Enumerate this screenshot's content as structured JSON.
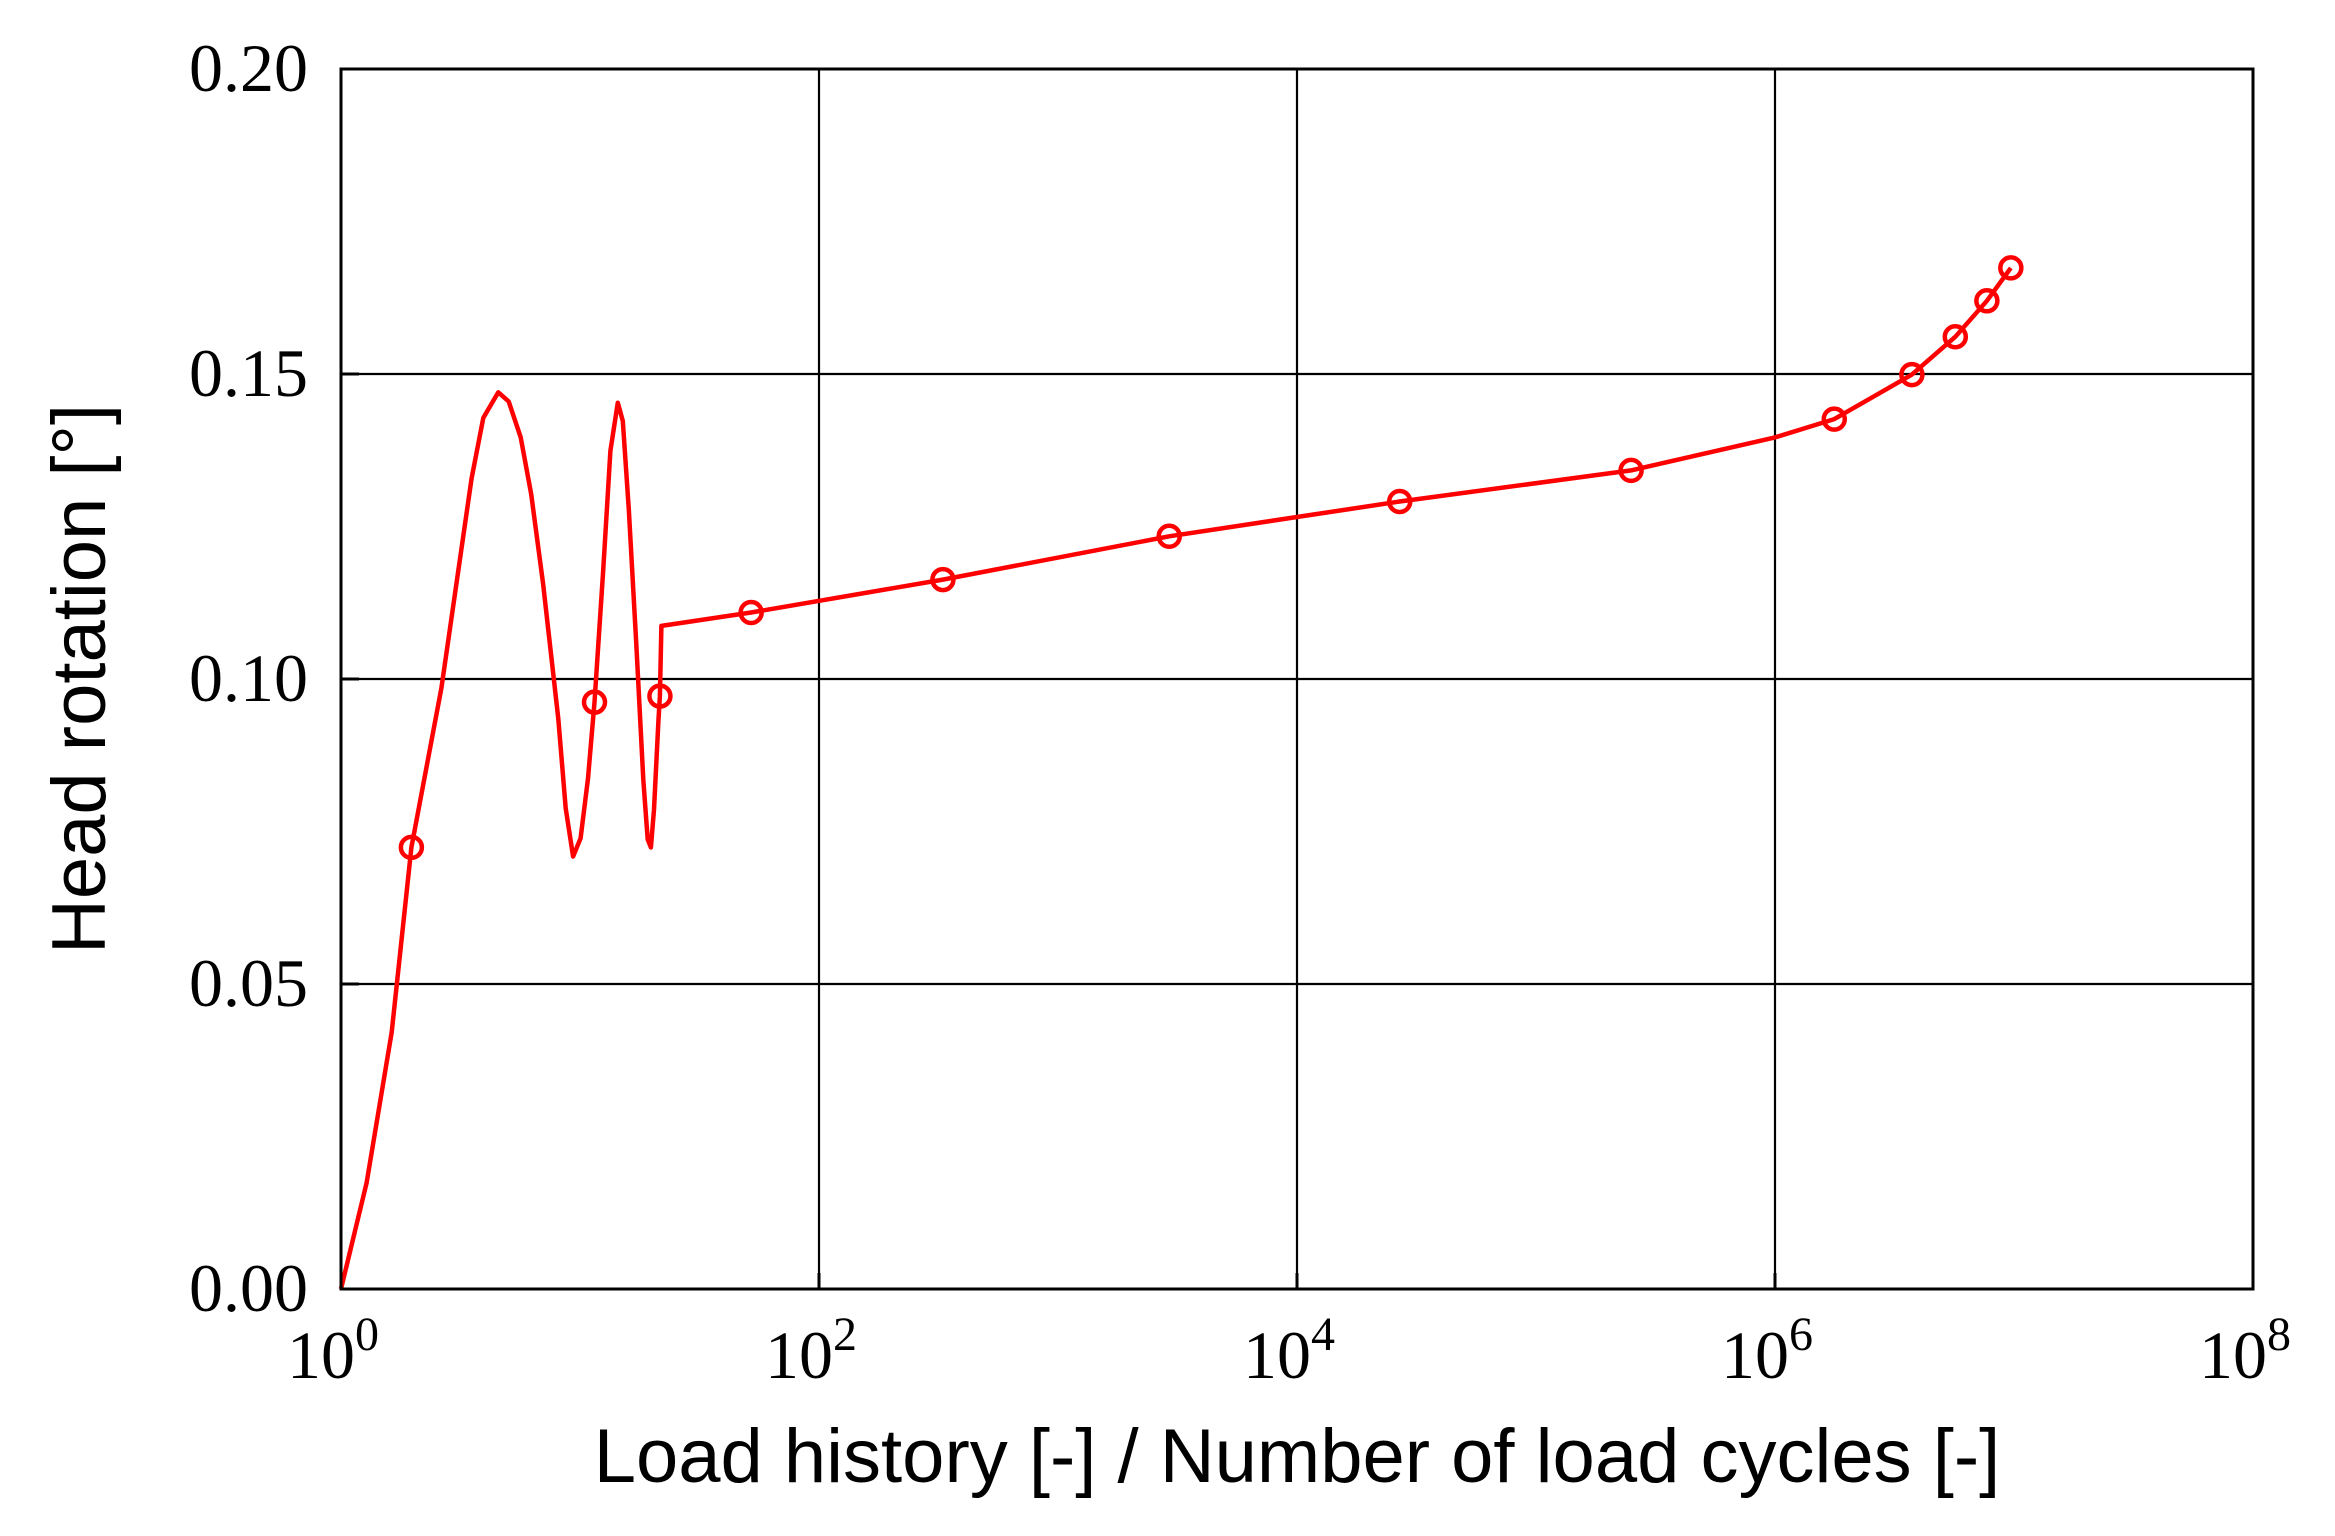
{
  "chart_data": {
    "type": "line",
    "title": "",
    "xlabel": "Load history [-] / Number of load cycles [-]",
    "ylabel": "Head rotation [°]",
    "x_scale": "log",
    "xlim": [
      1,
      100000000
    ],
    "ylim": [
      0,
      0.2
    ],
    "x_ticks": [
      {
        "base": "10",
        "exp": "0",
        "value": 1
      },
      {
        "base": "10",
        "exp": "2",
        "value": 100
      },
      {
        "base": "10",
        "exp": "4",
        "value": 10000
      },
      {
        "base": "10",
        "exp": "6",
        "value": 1000000
      },
      {
        "base": "10",
        "exp": "8",
        "value": 100000000
      }
    ],
    "y_ticks": [
      {
        "label": "0.00",
        "value": 0
      },
      {
        "label": "0.05",
        "value": 0.05
      },
      {
        "label": "0.10",
        "value": 0.1
      },
      {
        "label": "0.15",
        "value": 0.15
      },
      {
        "label": "0.20",
        "value": 0.2
      }
    ],
    "grid": true,
    "color": "#ff0000",
    "series": [
      {
        "line": [
          [
            1,
            0
          ],
          [
            1.28,
            0.0174
          ],
          [
            1.63,
            0.0421
          ],
          [
            1.97,
            0.0724
          ],
          [
            2.63,
            0.0985
          ],
          [
            3.52,
            0.1329
          ],
          [
            3.94,
            0.1428
          ],
          [
            4.55,
            0.147
          ],
          [
            5.03,
            0.1455
          ],
          [
            5.65,
            0.1396
          ],
          [
            6.25,
            0.1303
          ],
          [
            7.01,
            0.1156
          ],
          [
            8.11,
            0.0935
          ],
          [
            8.71,
            0.0788
          ],
          [
            9.36,
            0.0709
          ],
          [
            10.06,
            0.0739
          ],
          [
            10.8,
            0.0837
          ],
          [
            11.5,
            0.0962
          ],
          [
            12.5,
            0.1178
          ],
          [
            13.4,
            0.1374
          ],
          [
            14.4,
            0.1453
          ],
          [
            15.1,
            0.1423
          ],
          [
            16.0,
            0.1278
          ],
          [
            17.2,
            0.1057
          ],
          [
            18.4,
            0.0835
          ],
          [
            19.2,
            0.0737
          ],
          [
            19.8,
            0.0724
          ],
          [
            20.4,
            0.0786
          ],
          [
            21.3,
            0.0934
          ],
          [
            21.6,
            0.0972
          ],
          [
            21.9,
            0.1087
          ],
          [
            52,
            0.1109
          ],
          [
            330,
            0.1163
          ],
          [
            2920,
            0.1234
          ],
          [
            26900,
            0.1291
          ],
          [
            250000,
            0.1342
          ],
          [
            1000000,
            0.1396
          ],
          [
            1770000,
            0.1426
          ],
          [
            3740000,
            0.1499
          ],
          [
            5680000,
            0.1561
          ],
          [
            7700000,
            0.162
          ],
          [
            9700000,
            0.1674
          ]
        ],
        "markers": [
          [
            1.97,
            0.0724
          ],
          [
            11.5,
            0.0962
          ],
          [
            21.6,
            0.0972
          ],
          [
            52,
            0.1109
          ],
          [
            330,
            0.1163
          ],
          [
            2920,
            0.1234
          ],
          [
            26900,
            0.1291
          ],
          [
            250000,
            0.1342
          ],
          [
            1770000,
            0.1426
          ],
          [
            3740000,
            0.1499
          ],
          [
            5680000,
            0.1561
          ],
          [
            7700000,
            0.162
          ],
          [
            9700000,
            0.1674
          ]
        ]
      }
    ]
  }
}
